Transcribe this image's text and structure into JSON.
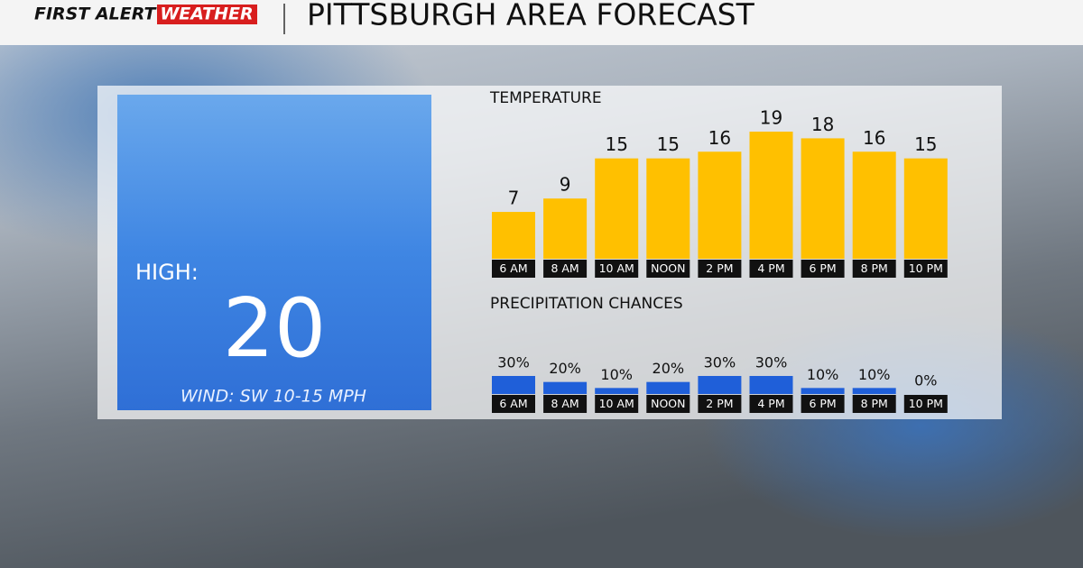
{
  "header": {
    "brand_first": "FIRST ALERT",
    "brand_second": "WEATHER",
    "title": "PITTSBURGH AREA FORECAST"
  },
  "high": {
    "label": "HIGH:",
    "value": "20",
    "wind": "WIND: SW 10-15 MPH"
  },
  "chart_data": [
    {
      "type": "bar",
      "title": "TEMPERATURE",
      "color": "#ffc000",
      "categories": [
        "6 AM",
        "8 AM",
        "10 AM",
        "NOON",
        "2 PM",
        "4 PM",
        "6 PM",
        "8 PM",
        "10 PM"
      ],
      "values": [
        7,
        9,
        15,
        15,
        16,
        19,
        18,
        16,
        15
      ]
    },
    {
      "type": "bar",
      "title": "PRECIPITATION CHANCES",
      "color": "#1f5fd9",
      "categories": [
        "6 AM",
        "8 AM",
        "10 AM",
        "NOON",
        "2 PM",
        "4 PM",
        "6 PM",
        "8 PM",
        "10 PM"
      ],
      "values": [
        30,
        20,
        10,
        20,
        30,
        30,
        10,
        10,
        0
      ],
      "value_labels": [
        "30%",
        "20%",
        "10%",
        "20%",
        "30%",
        "30%",
        "10%",
        "10%",
        "0%"
      ]
    }
  ]
}
